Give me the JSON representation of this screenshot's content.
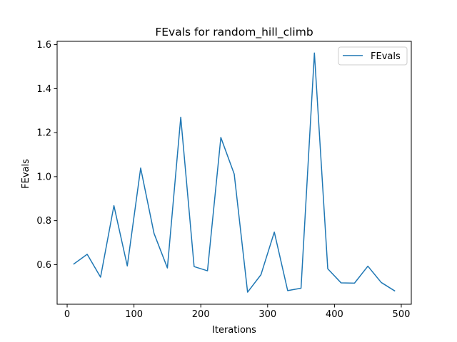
{
  "chart_data": {
    "type": "line",
    "title": "FEvals for random_hill_climb",
    "xlabel": "Iterations",
    "ylabel": "FEvals",
    "xlim": [
      -15,
      515
    ],
    "ylim": [
      0.42,
      1.615
    ],
    "xticks": [
      0,
      100,
      200,
      300,
      400,
      500
    ],
    "xtick_labels": [
      "0",
      "100",
      "200",
      "300",
      "400",
      "500"
    ],
    "yticks": [
      0.6,
      0.8,
      1.0,
      1.2,
      1.4,
      1.6
    ],
    "ytick_labels": [
      "0.6",
      "0.8",
      "1.0",
      "1.2",
      "1.4",
      "1.6"
    ],
    "grid": false,
    "legend_position": "top-right",
    "series": [
      {
        "name": "FEvals",
        "color": "#1f77b4",
        "x": [
          10,
          30,
          50,
          70,
          90,
          110,
          130,
          150,
          170,
          190,
          210,
          230,
          250,
          270,
          290,
          310,
          330,
          350,
          370,
          390,
          410,
          430,
          450,
          470,
          490
        ],
        "y": [
          0.603,
          0.647,
          0.543,
          0.868,
          0.594,
          1.039,
          0.742,
          0.585,
          1.27,
          0.591,
          0.572,
          1.178,
          1.012,
          0.475,
          0.554,
          0.748,
          0.482,
          0.493,
          1.562,
          0.581,
          0.517,
          0.516,
          0.593,
          0.519,
          0.481
        ]
      }
    ]
  }
}
